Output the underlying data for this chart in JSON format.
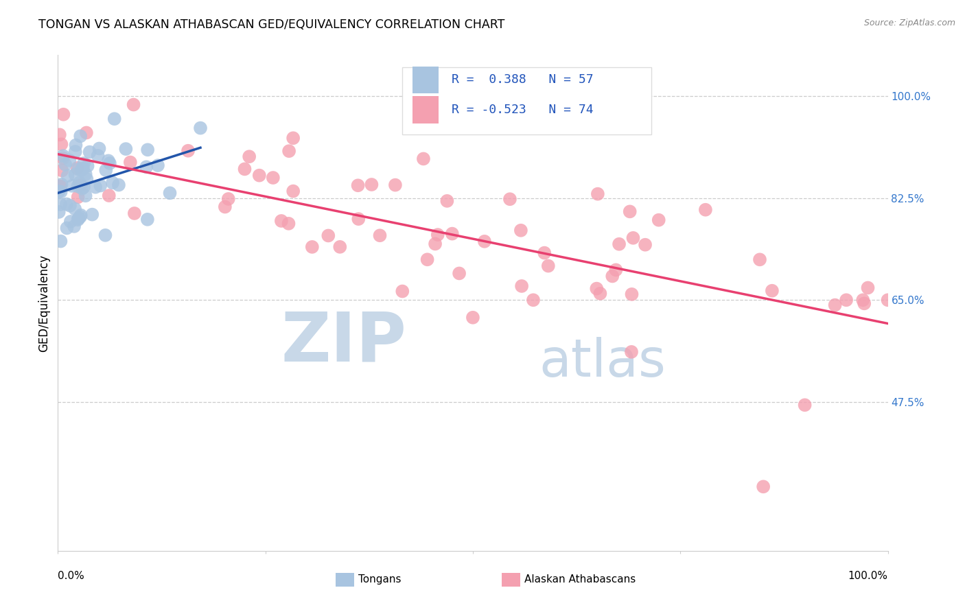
{
  "title": "TONGAN VS ALASKAN ATHABASCAN GED/EQUIVALENCY CORRELATION CHART",
  "source": "Source: ZipAtlas.com",
  "ylabel": "GED/Equivalency",
  "ytick_labels": [
    "100.0%",
    "82.5%",
    "65.0%",
    "47.5%"
  ],
  "ytick_values": [
    1.0,
    0.825,
    0.65,
    0.475
  ],
  "legend_blue_r": "0.388",
  "legend_blue_n": "57",
  "legend_pink_r": "-0.523",
  "legend_pink_n": "74",
  "blue_color": "#a8c4e0",
  "pink_color": "#f4a0b0",
  "blue_line_color": "#2255aa",
  "pink_line_color": "#e84070",
  "watermark_zip": "ZIP",
  "watermark_atlas": "atlas",
  "watermark_color": "#c8d8e8",
  "legend_text_color": "#2255bb",
  "right_tick_color": "#3377cc"
}
